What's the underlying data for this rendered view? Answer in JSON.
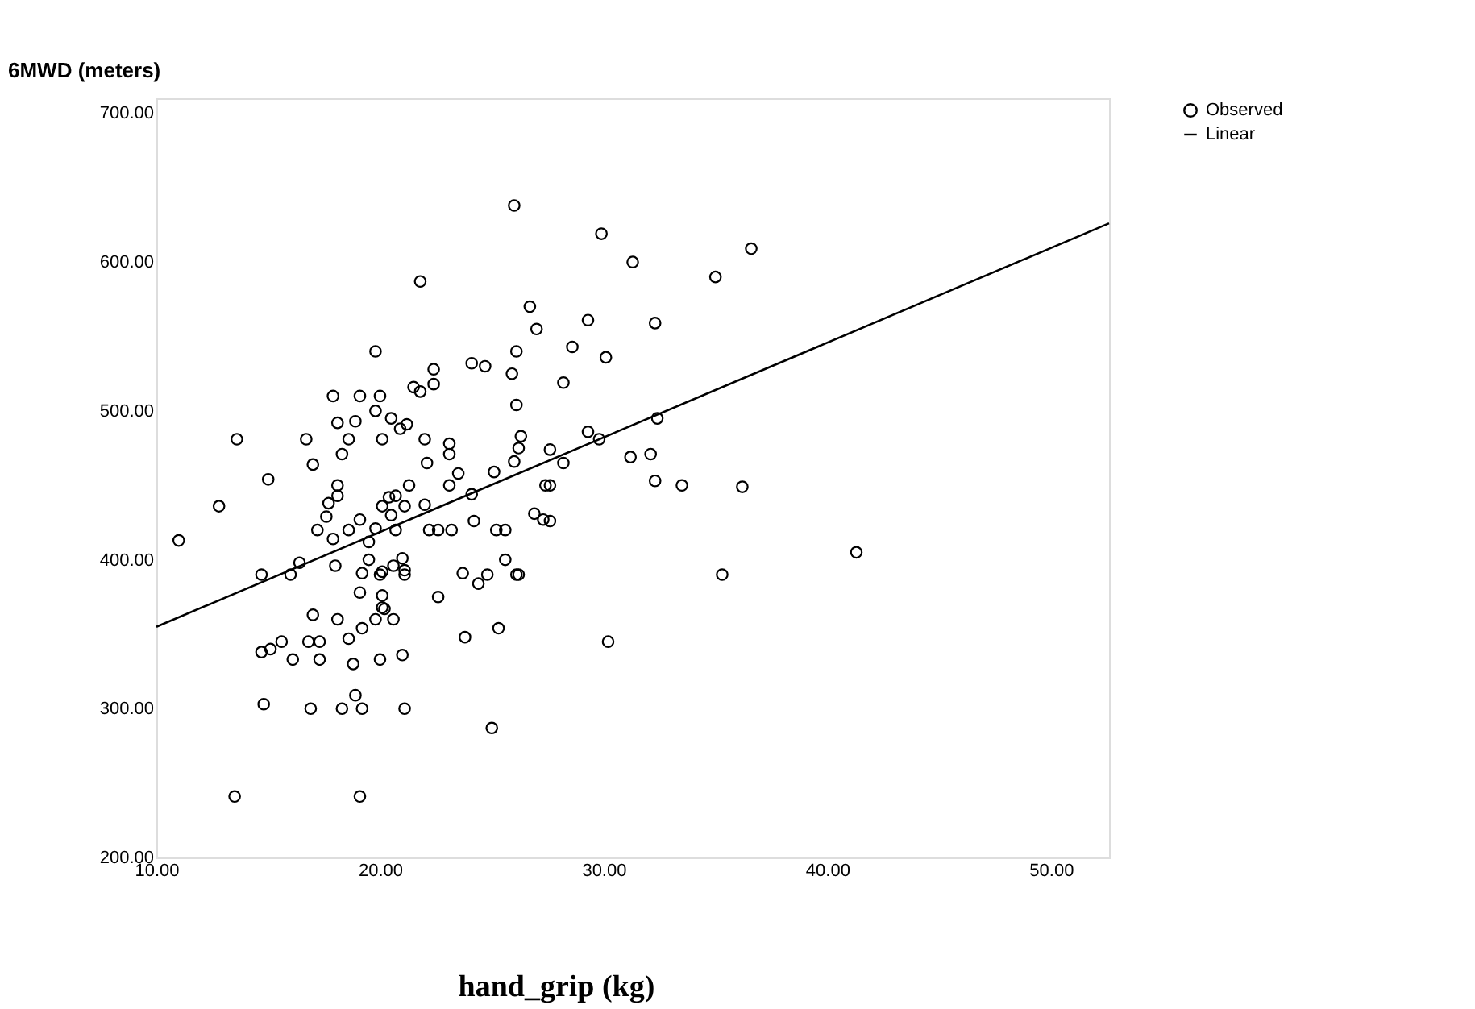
{
  "chart_data": {
    "type": "scatter",
    "ylabel": "6MWD (meters)",
    "xlabel": "hand_grip (kg)",
    "xlim": [
      10,
      52.6
    ],
    "ylim": [
      200,
      710
    ],
    "xticks": [
      {
        "value": 10,
        "label": "10.00"
      },
      {
        "value": 20,
        "label": "20.00"
      },
      {
        "value": 30,
        "label": "30.00"
      },
      {
        "value": 40,
        "label": "40.00"
      },
      {
        "value": 50,
        "label": "50.00"
      }
    ],
    "yticks": [
      {
        "value": 200,
        "label": "200.00"
      },
      {
        "value": 300,
        "label": "300.00"
      },
      {
        "value": 400,
        "label": "400.00"
      },
      {
        "value": 500,
        "label": "500.00"
      },
      {
        "value": 600,
        "label": "600.00"
      },
      {
        "value": 700,
        "label": "700.00"
      }
    ],
    "grid": false,
    "legend": "top right",
    "series": [
      {
        "name": "Observed",
        "marker": "circle",
        "color": "#000000",
        "x": [
          11.0,
          12.8,
          15.0,
          14.7,
          16.0,
          16.4,
          18.0,
          17.0,
          18.1,
          18.6,
          19.2,
          19.8,
          20.6,
          14.7,
          15.1,
          15.6,
          16.1,
          16.8,
          17.3,
          17.3,
          18.8,
          20.0,
          21.0,
          14.8,
          16.9,
          18.3,
          18.9,
          19.2,
          21.1,
          13.5,
          19.1,
          25.0,
          23.8,
          25.3,
          22.6,
          23.7,
          24.4,
          24.8,
          25.6,
          26.1,
          18.1,
          17.7,
          18.1,
          17.6,
          17.2,
          17.9,
          18.6,
          19.1,
          19.5,
          19.5,
          19.2,
          19.1,
          20.0,
          20.1,
          20.1,
          20.1,
          20.2,
          19.8,
          20.1,
          20.4,
          20.7,
          20.5,
          20.7,
          21.1,
          21.3,
          21.0,
          21.1,
          21.1,
          20.6,
          22.0,
          22.2,
          22.6,
          23.2,
          23.1,
          23.5,
          24.1,
          24.2,
          25.1,
          25.2,
          25.6,
          32.3,
          33.5,
          36.2,
          27.4,
          27.6,
          26.9,
          27.3,
          27.6,
          26.2,
          35.3,
          30.2,
          41.3,
          26.0,
          29.9,
          31.3,
          35.0,
          36.6,
          26.7,
          27.0,
          29.3,
          32.3,
          28.6,
          30.1,
          26.1,
          25.9,
          24.7,
          28.2,
          26.1,
          26.3,
          26.2,
          26.0,
          27.6,
          28.2,
          29.3,
          29.8,
          32.4,
          31.2,
          32.1,
          21.8,
          19.8,
          24.1,
          22.4,
          22.4,
          21.5,
          21.8,
          17.9,
          19.1,
          20.0,
          19.8,
          18.1,
          18.9,
          20.5,
          20.9,
          21.2,
          20.1,
          22.0,
          13.6,
          16.7,
          18.6,
          17.0,
          18.3,
          23.1,
          23.1,
          22.1
        ],
        "values": [
          413,
          436,
          454,
          390,
          390,
          398,
          396,
          363,
          360,
          347,
          354,
          360,
          360,
          338,
          340,
          345,
          333,
          345,
          345,
          333,
          330,
          333,
          336,
          303,
          300,
          300,
          309,
          300,
          300,
          241,
          241,
          287,
          348,
          354,
          375,
          391,
          384,
          390,
          400,
          390,
          450,
          438,
          443,
          429,
          420,
          414,
          420,
          427,
          412,
          400,
          391,
          378,
          390,
          392,
          376,
          368,
          367,
          421,
          436,
          442,
          443,
          430,
          420,
          436,
          450,
          401,
          393,
          390,
          396,
          437,
          420,
          420,
          420,
          450,
          458,
          444,
          426,
          459,
          420,
          420,
          453,
          450,
          449,
          450,
          450,
          431,
          427,
          426,
          390,
          390,
          345,
          405,
          638,
          619,
          600,
          590,
          609,
          570,
          555,
          561,
          559,
          543,
          536,
          540,
          525,
          530,
          519,
          504,
          483,
          475,
          466,
          474,
          465,
          486,
          481,
          495,
          469,
          471,
          587,
          540,
          532,
          528,
          518,
          516,
          513,
          510,
          510,
          510,
          500,
          492,
          493,
          495,
          488,
          491,
          481,
          481,
          481,
          481,
          481,
          464,
          471,
          478,
          471,
          465
        ]
      },
      {
        "name": "Linear",
        "type": "line",
        "line_style": "solid",
        "color": "#000000",
        "x": [
          10,
          52.6
        ],
        "values": [
          355,
          626
        ]
      }
    ]
  }
}
